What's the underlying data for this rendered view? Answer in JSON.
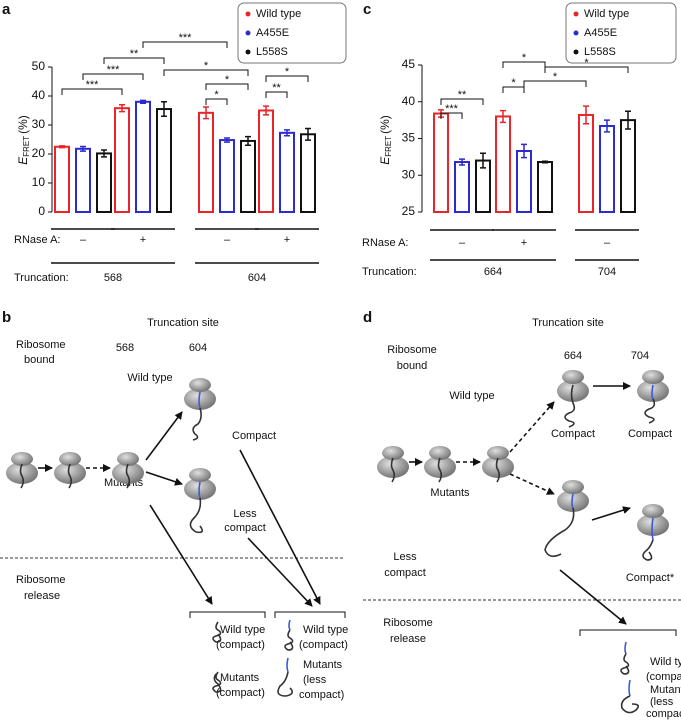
{
  "chart_data": [
    {
      "type": "bar",
      "letter": "a",
      "ylabel": {
        "symbol": "E",
        "sub": "FRET",
        "unit": "(%)"
      },
      "ylim": [
        0,
        50
      ],
      "yticks": [
        0,
        10,
        20,
        30,
        40,
        50
      ],
      "treatment_label": "RNase A:",
      "categories": [
        "–",
        "+",
        "–",
        "+"
      ],
      "truncation_label": "Truncation:",
      "truncations": [
        "568",
        "604"
      ],
      "series": [
        {
          "name": "Wild type",
          "color": "#e8262a",
          "values": [
            22.5,
            35.8,
            34.2,
            35.0
          ],
          "errors": [
            0.3,
            1.2,
            2.0,
            1.5
          ]
        },
        {
          "name": "A455E",
          "color": "#2b2bd0",
          "values": [
            21.8,
            38.0,
            24.8,
            27.3
          ],
          "errors": [
            0.8,
            0.5,
            0.7,
            1.0
          ]
        },
        {
          "name": "L558S",
          "color": "#111111",
          "values": [
            20.2,
            35.5,
            24.5,
            26.8
          ],
          "errors": [
            1.2,
            2.5,
            1.5,
            2.0
          ]
        }
      ],
      "significance": [
        "***",
        "***",
        "**",
        "***",
        "*",
        "*",
        "*",
        "*",
        "**"
      ]
    },
    {
      "type": "bar",
      "letter": "c",
      "ylabel": {
        "symbol": "E",
        "sub": "FRET",
        "unit": "(%)"
      },
      "ylim": [
        25,
        45
      ],
      "yticks": [
        25,
        30,
        35,
        40,
        45
      ],
      "treatment_label": "RNase A:",
      "categories": [
        "–",
        "+",
        "–"
      ],
      "truncation_label": "Truncation:",
      "truncations": [
        "664",
        "704"
      ],
      "series": [
        {
          "name": "Wild type",
          "color": "#e8262a",
          "values": [
            38.4,
            38.0,
            38.2
          ],
          "errors": [
            0.5,
            0.8,
            1.2
          ]
        },
        {
          "name": "A455E",
          "color": "#2b2bd0",
          "values": [
            31.8,
            33.3,
            36.7
          ],
          "errors": [
            0.4,
            0.9,
            0.8
          ]
        },
        {
          "name": "L558S",
          "color": "#111111",
          "values": [
            32.0,
            31.8,
            37.5
          ],
          "errors": [
            1.0,
            0.1,
            1.2
          ]
        }
      ],
      "significance": [
        "**",
        "***",
        "*",
        "*",
        "*",
        "*"
      ]
    }
  ],
  "panel_b": {
    "letter": "b",
    "title": "Truncation site",
    "bound": [
      "Ribosome",
      "bound"
    ],
    "sites": [
      "568",
      "604"
    ],
    "wild_type": "Wild type",
    "compact": "Compact",
    "mutants": "Mutants",
    "less_compact": [
      "Less",
      "compact"
    ],
    "release": [
      "Ribosome",
      "release"
    ],
    "released": [
      [
        "Wild type",
        "(compact)"
      ],
      [
        "Mutants",
        "(compact)"
      ],
      [
        "Wild type",
        "(compact)"
      ],
      [
        "Mutants",
        "(less",
        "compact)"
      ]
    ]
  },
  "panel_d": {
    "letter": "d",
    "title": "Truncation site",
    "bound": [
      "Ribosome",
      "bound"
    ],
    "sites": [
      "664",
      "704"
    ],
    "wild_type": "Wild type",
    "compact_1": "Compact",
    "compact_2": "Compact",
    "mutants": "Mutants",
    "less_compact": [
      "Less",
      "compact"
    ],
    "compact_star": "Compact*",
    "release": [
      "Ribosome",
      "release"
    ],
    "released": [
      [
        "Wild type",
        "(compact)"
      ],
      [
        "Mutants",
        "(less",
        "compact)"
      ]
    ]
  }
}
